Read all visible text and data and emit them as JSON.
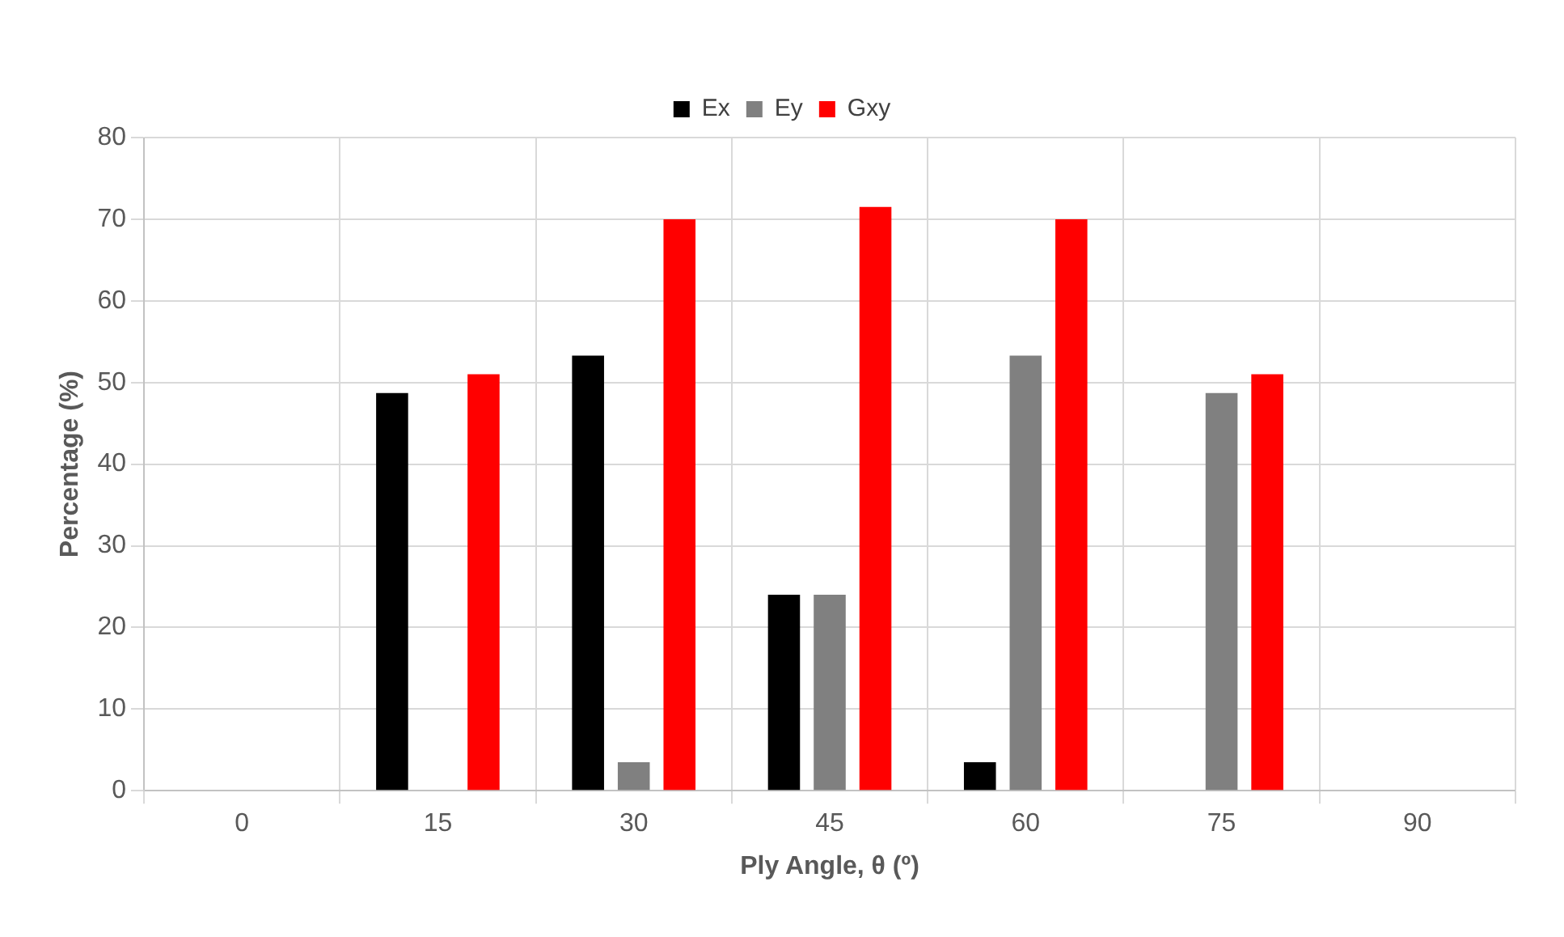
{
  "chart_data": {
    "type": "bar",
    "xlabel": "Ply Angle, θ (º)",
    "ylabel": "Percentage (%)",
    "categories": [
      "0",
      "15",
      "30",
      "45",
      "60",
      "75",
      "90"
    ],
    "series": [
      {
        "name": "Ex",
        "color": "#000000",
        "values": [
          0,
          48.7,
          53.3,
          24,
          3.5,
          0,
          0
        ]
      },
      {
        "name": "Ey",
        "color": "#808080",
        "values": [
          0,
          0,
          3.5,
          24,
          53.3,
          48.7,
          0
        ]
      },
      {
        "name": "Gxy",
        "color": "#ff0000",
        "values": [
          0,
          51,
          70,
          71.5,
          70,
          51,
          0
        ]
      }
    ],
    "ylim": [
      0,
      80
    ],
    "yticks": [
      0,
      10,
      20,
      30,
      40,
      50,
      60,
      70,
      80
    ],
    "grid": true,
    "legend": "top"
  }
}
